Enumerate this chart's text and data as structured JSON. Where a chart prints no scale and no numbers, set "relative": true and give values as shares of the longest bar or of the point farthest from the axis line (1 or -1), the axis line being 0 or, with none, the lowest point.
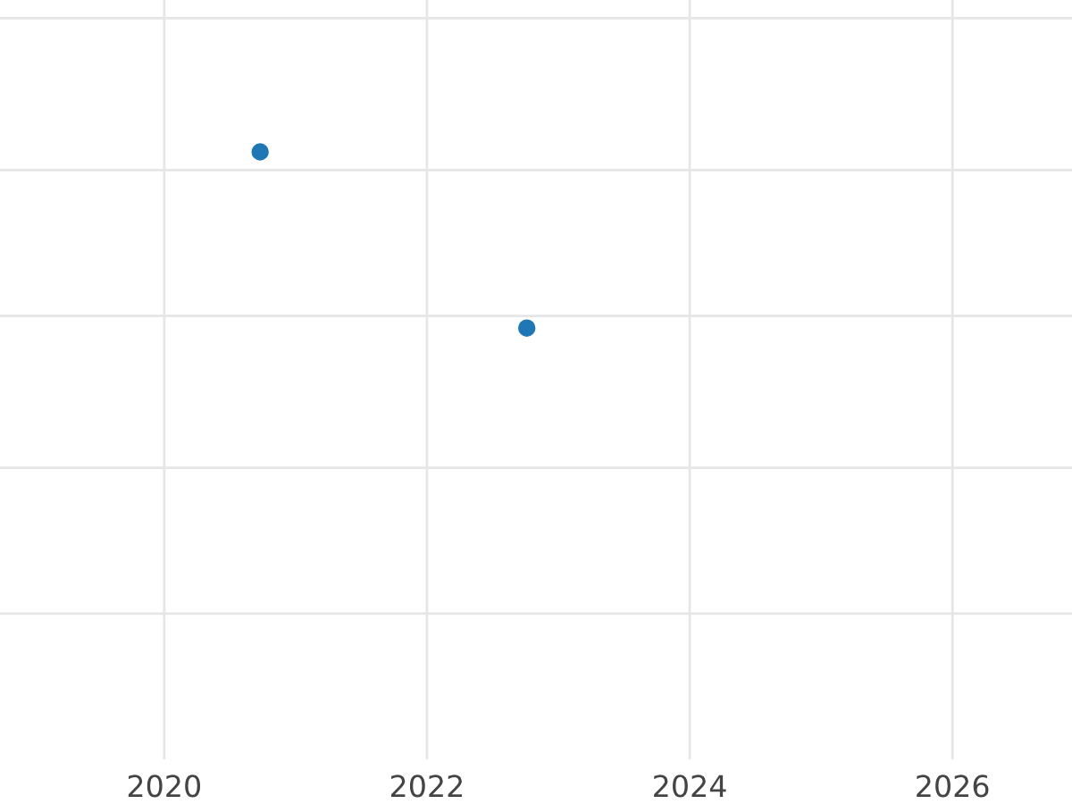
{
  "chart_data": {
    "type": "scatter",
    "x": [
      2020.73,
      2022.76
    ],
    "series": [
      {
        "color": "#1f77b4",
        "values": [
          1,
          0.71
        ]
      }
    ],
    "relative": true,
    "marker": "circle",
    "grid": true,
    "xlim": [
      2018.75,
      2026.91
    ],
    "xticks": [
      2020,
      2022,
      2024,
      2026
    ]
  }
}
